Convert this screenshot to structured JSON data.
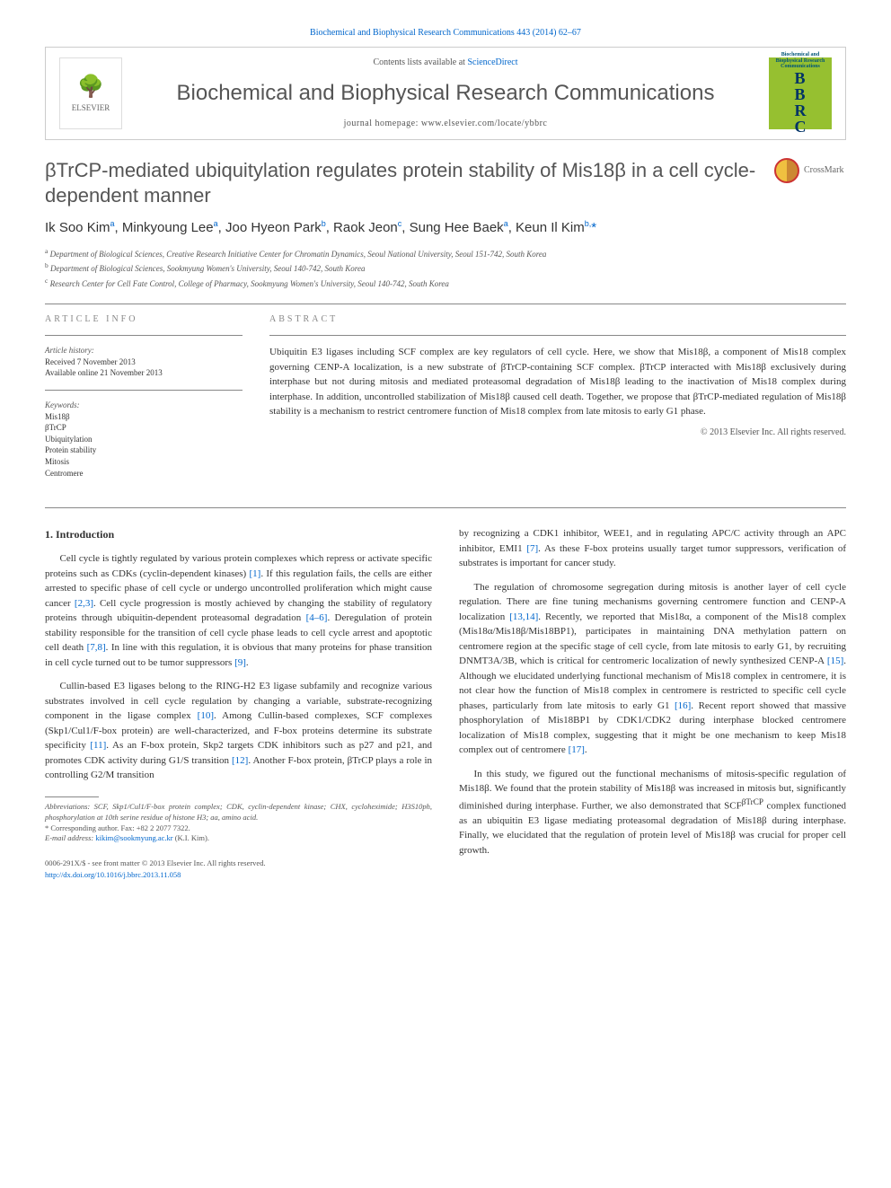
{
  "top_link": {
    "journal_ref": "Biochemical and Biophysical Research Communications 443 (2014) 62–67"
  },
  "header": {
    "contents_prefix": "Contents lists available at ",
    "contents_link": "ScienceDirect",
    "journal_name": "Biochemical and Biophysical Research Communications",
    "homepage_prefix": "journal homepage: ",
    "homepage_url": "www.elsevier.com/locate/ybbrc",
    "elsevier_label": "ELSEVIER",
    "bbrc_letters": "B\nB\nR\nC",
    "bbrc_caption": "Biochemical and Biophysical Research Communications"
  },
  "crossmark_label": "CrossMark",
  "title": "βTrCP-mediated ubiquitylation regulates protein stability of Mis18β in a cell cycle-dependent manner",
  "authors_html": "Ik Soo Kim<sup>a</sup>, Minkyoung Lee<sup>a</sup>, Joo Hyeon Park<sup>b</sup>, Raok Jeon<sup>c</sup>, Sung Hee Baek<sup>a</sup>, Keun Il Kim<sup>b,</sup><span class='corr'>*</span>",
  "affiliations": [
    "a Department of Biological Sciences, Creative Research Initiative Center for Chromatin Dynamics, Seoul National University, Seoul 151-742, South Korea",
    "b Department of Biological Sciences, Sookmyung Women's University, Seoul 140-742, South Korea",
    "c Research Center for Cell Fate Control, College of Pharmacy, Sookmyung Women's University, Seoul 140-742, South Korea"
  ],
  "article_info": {
    "heading": "ARTICLE INFO",
    "history_label": "Article history:",
    "received": "Received 7 November 2013",
    "online": "Available online 21 November 2013",
    "keywords_label": "Keywords:",
    "keywords": [
      "Mis18β",
      "βTrCP",
      "Ubiquitylation",
      "Protein stability",
      "Mitosis",
      "Centromere"
    ]
  },
  "abstract": {
    "heading": "ABSTRACT",
    "text": "Ubiquitin E3 ligases including SCF complex are key regulators of cell cycle. Here, we show that Mis18β, a component of Mis18 complex governing CENP-A localization, is a new substrate of βTrCP-containing SCF complex. βTrCP interacted with Mis18β exclusively during interphase but not during mitosis and mediated proteasomal degradation of Mis18β leading to the inactivation of Mis18 complex during interphase. In addition, uncontrolled stabilization of Mis18β caused cell death. Together, we propose that βTrCP-mediated regulation of Mis18β stability is a mechanism to restrict centromere function of Mis18 complex from late mitosis to early G1 phase.",
    "copyright": "© 2013 Elsevier Inc. All rights reserved."
  },
  "intro": {
    "heading": "1. Introduction",
    "paragraphs_left": [
      "Cell cycle is tightly regulated by various protein complexes which repress or activate specific proteins such as CDKs (cyclin-dependent kinases) [1]. If this regulation fails, the cells are either arrested to specific phase of cell cycle or undergo uncontrolled proliferation which might cause cancer [2,3]. Cell cycle progression is mostly achieved by changing the stability of regulatory proteins through ubiquitin-dependent proteasomal degradation [4–6]. Deregulation of protein stability responsible for the transition of cell cycle phase leads to cell cycle arrest and apoptotic cell death [7,8]. In line with this regulation, it is obvious that many proteins for phase transition in cell cycle turned out to be tumor suppressors [9].",
      "Cullin-based E3 ligases belong to the RING-H2 E3 ligase subfamily and recognize various substrates involved in cell cycle regulation by changing a variable, substrate-recognizing component in the ligase complex [10]. Among Cullin-based complexes, SCF complexes (Skp1/Cul1/F-box protein) are well-characterized, and F-box proteins determine its substrate specificity [11]. As an F-box protein, Skp2 targets CDK inhibitors such as p27 and p21, and promotes CDK activity during G1/S transition [12]. Another F-box protein, βTrCP plays a role in controlling G2/M transition"
    ],
    "paragraphs_right": [
      "by recognizing a CDK1 inhibitor, WEE1, and in regulating APC/C activity through an APC inhibitor, EMI1 [7]. As these F-box proteins usually target tumor suppressors, verification of substrates is important for cancer study.",
      "The regulation of chromosome segregation during mitosis is another layer of cell cycle regulation. There are fine tuning mechanisms governing centromere function and CENP-A localization [13,14]. Recently, we reported that Mis18α, a component of the Mis18 complex (Mis18α/Mis18β/Mis18BP1), participates in maintaining DNA methylation pattern on centromere region at the specific stage of cell cycle, from late mitosis to early G1, by recruiting DNMT3A/3B, which is critical for centromeric localization of newly synthesized CENP-A [15]. Although we elucidated underlying functional mechanism of Mis18 complex in centromere, it is not clear how the function of Mis18 complex in centromere is restricted to specific cell cycle phases, particularly from late mitosis to early G1 [16]. Recent report showed that massive phosphorylation of Mis18BP1 by CDK1/CDK2 during interphase blocked centromere localization of Mis18 complex, suggesting that it might be one mechanism to keep Mis18 complex out of centromere [17].",
      "In this study, we figured out the functional mechanisms of mitosis-specific regulation of Mis18β. We found that the protein stability of Mis18β was increased in mitosis but, significantly diminished during interphase. Further, we also demonstrated that SCFβTrCP complex functioned as an ubiquitin E3 ligase mediating proteasomal degradation of Mis18β during interphase. Finally, we elucidated that the regulation of protein level of Mis18β was crucial for proper cell growth."
    ]
  },
  "footnotes": {
    "abbreviations": "Abbreviations: SCF, Skp1/Cul1/F-box protein complex; CDK, cyclin-dependent kinase; CHX, cycloheximide; H3S10ph, phosphorylation at 10th serine residue of histone H3; aa, amino acid.",
    "corresponding": "* Corresponding author. Fax: +82 2 2077 7322.",
    "email_label": "E-mail address: ",
    "email": "kikim@sookmyung.ac.kr",
    "email_suffix": " (K.I. Kim)."
  },
  "footer": {
    "issn": "0006-291X/$ - see front matter © 2013 Elsevier Inc. All rights reserved.",
    "doi": "http://dx.doi.org/10.1016/j.bbrc.2013.11.058"
  },
  "ref_links": {
    "r1": "[1]",
    "r23": "[2,3]",
    "r46": "[4–6]",
    "r78": "[7,8]",
    "r9": "[9]",
    "r10": "[10]",
    "r11": "[11]",
    "r12": "[12]",
    "r7": "[7]",
    "r1314": "[13,14]",
    "r15": "[15]",
    "r16": "[16]",
    "r17": "[17]"
  },
  "colors": {
    "link": "#0066cc",
    "text": "#333333",
    "heading_gray": "#888888",
    "bbrc_bg": "#96c030",
    "title_gray": "#555555"
  }
}
